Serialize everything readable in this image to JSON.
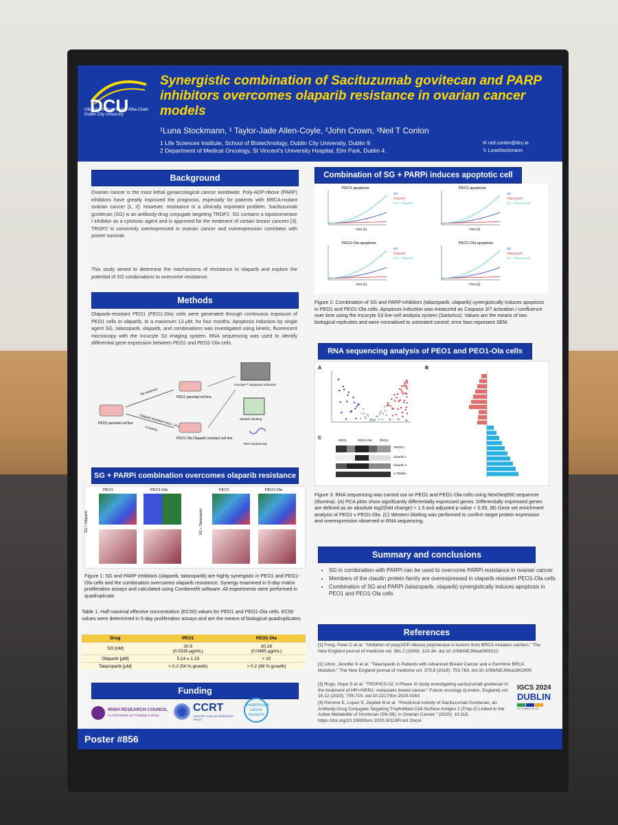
{
  "poster": {
    "title": "Synergistic combination of Sacituzumab govitecan and PARP inhibitors overcomes olaparib resistance in ovarian cancer models",
    "authors": "¹Luna Stockmann, ¹ Taylor-Jade Allen-Coyle, ²John Crown, ¹Neil T Conlon",
    "affiliation_1": "1 Life Sciences Institute, School of Biotechnology, Dublin City University, Dublin 9.",
    "affiliation_2": "2 Department of Medical Oncology, St Vincent's University Hospital, Elm Park, Dublin 4.",
    "contact_email": "neil.conlon@dcu.ie",
    "contact_handle": "LunaStockmann",
    "logo_text": "DCU",
    "logo_subtext": "Ollscoil Chathair Bhaile Átha Cliath Dublin City University",
    "poster_number": "Poster #856"
  },
  "sections": {
    "background": {
      "heading": "Background",
      "text_1": "Ovarian cancer is the most lethal gynaecological cancer worldwide. Poly-ADP-ribose (PARP) inhibitors have greatly improved the prognosis, especially for patients with BRCA-mutant ovarian cancer [1, 2]. However, resistance is a clinically important problem. Sacituzumab govitecan (SG) is an antibody-drug conjugate targeting TROP2. SG contains a topoisomerase I inhibitor as a cytotoxic agent and is approved for the treatment of certain breast cancers [3]. TROP2 is commonly overexpressed in ovarian cancer and overexpression correlates with poorer survival.",
      "text_2": "This study aimed to determine the mechanisms of resistance to olaparib and explore the potential of SG combinations to overcome resistance."
    },
    "methods": {
      "heading": "Methods",
      "text": "Olaparib-resistant PEO1 (PEO1-Ola) cells were generated through continuous exposure of PEO1 cells to olaparib, to a maximum 13 μM, for four months. Apoptosis induction by single agent SG, talazoparib, olaparib, and combinations was investigated using kinetic, fluorescent microscopy with the Incucyte S3 imaging system. RNA sequencing was used to identify differential gene expression between PEO1 and PEO1-Ola cells."
    },
    "combination": {
      "heading": "SG + PARPi combination overcomes olaparib resistance",
      "caption": "Figure 1: SG and PARP inhibitors (olaparib, talazoparib) are highly synergistic in PEO1 and PEO1-Ola cells and the combination overcomes olaparib resistance. Synergy examined in 5-day matrix proliferation assays and calculated using Combenefit software. All experiments were performed in quadruplicate.",
      "table_caption": "Table 1: Half maximal effective concentration (EC50) values for PEO1 and PEO1-Ola cells. EC50 values were determined in 5-day proliferation assays and are the means of biological quadruplicates."
    },
    "funding": {
      "heading": "Funding"
    },
    "apoptosis": {
      "heading": "Combination of SG + PARPi induces apoptotic cell death",
      "caption": "Figure 2: Combination of SG and PARP inhibitors (talazoparib, olaparib) synergistically induces apoptosis in PEO1 and PEO1-Ola cells. Apoptosis induction was measured as Caspase 3/7 activation / confluence over time using the Incucyte S3 live-cell analysis system (Sartorius). Values are the means of two biological replicates and were normalised to untreated control; error bars represent SEM."
    },
    "rnaseq": {
      "heading": "RNA sequencing analysis of PEO1 and PEO1-Ola cells",
      "caption": "Figure 3: RNA sequencing was carried out on PEO1 and PEO1-Ola cells using NextSeq550 sequencer (Illumina). (A) PCA plots show significantly differentially expressed genes. Differentially expressed genes are defined as an absolute log2(fold change) > 1.5 and adjusted p-value < 0.05. (B) Gene set enrichment analysis of PEO1 v PEO1-Ola. (C) Western blotting was performed to confirm target protein expression and overexpression observed in RNA sequencing."
    },
    "summary": {
      "heading": "Summary and conclusions",
      "items": [
        "SG in combination with PARPi can be used to overcome PARPi resistance in ovarian cancer",
        "Members of the claudin protein family are overexpressed in olaparib resistant PEO1-Ola cells",
        "Combination of SG and PARPi (talazoparib, olaparib) synergistically induces apoptosis in PEO1 and PEO1-Ola cells"
      ]
    },
    "references": {
      "heading": "References",
      "items": [
        "[1] Fong, Peter C et al. \"Inhibition of poly(ADP-ribose) polymerase in tumors from BRCA mutation carriers.\" The New England journal of medicine vol. 361,2 (2009): 123-34. doi:10.1056/NEJMoa0900212",
        "[2] Litton, Jennifer K et al. \"Talazoparib in Patients with Advanced Breast Cancer and a Germline BRCA Mutation.\" The New England journal of medicine vol. 379,8 (2018): 753-763. doi:10.1056/NEJMoa1802905",
        "[3] Rugo, Hope S et al. \"TROPICS-02: A Phase III study investigating sacituzumab govitecan in the treatment of HR+/HER2- metastatic breast cancer.\" Future oncology (London, England) vol. 16,12 (2020): 705-715. doi:10.2217/fon-2020-0163",
        "[4] Perrone E, Lopez S, Zeybek B et al. \"Preclinical Activity of Sacituzumab Govitecan, an Antibody-Drug Conjugate Targeting Trophoblast Cell-Surface Antigen 2 (Trop-2) Linked to the Active Metabolite of Irinotecan (SN-38), in Ovarian Cancer.\" (2020): 10:118. https://doi.org/10.3389/fonc.2020.00118Front Oncol"
      ]
    }
  },
  "ec50_table": {
    "headers": [
      "Drug",
      "PEO1",
      "PEO1-Ola"
    ],
    "rows": [
      [
        "SG [nM]",
        "20.9\n(0.0335 µg/mL)",
        "30.28\n(0.0485 µg/mL)"
      ],
      [
        "Olaparib [µM]",
        "5.14 ± 1.19",
        "> 10"
      ],
      [
        "Talazoparib [µM]",
        "> 0.2 (54 % growth)",
        "> 0.2 (88 % growth)"
      ]
    ]
  },
  "diagram": {
    "parental": "PEO1 parental cell line",
    "no_treatment": "No treatment",
    "olaparib_treatment": "Olaparib treatment (max. 13 µM)",
    "duration": "4 months",
    "peo1_parental": "PEO1 parental cell line",
    "ola_resistant": "PEO1-Ola Olaparib resistant cell line",
    "incucyte": "Incucyte™ apoptosis induction",
    "western": "Western blotting",
    "rna": "RNA sequencing"
  },
  "funding_logos": {
    "irc": "IRISH RESEARCH COUNCIL",
    "irc_sub": "An Chomhairle um Thaighde in Éirinn",
    "ccrt": "CCRT",
    "ccrt_sub": "CANCER CLINICAL RESEARCH TRUST",
    "breakthrough": "breakthrough cancer research"
  },
  "conference": {
    "name": "IGCS 2024",
    "city": "DUBLIN",
    "dates": "OCTOBER 16-18"
  },
  "figure_labels": {
    "peo1_apoptosis": "PEO1 apoptosis",
    "peo1ola_apoptosis": "PEO1-Ola apoptosis",
    "sg": "SG",
    "olaparib": "Olaparib",
    "talazoparib": "Talazoparib",
    "sg_olaparib": "SG + Olaparib",
    "sg_talazoparib": "SG + Talazoparib",
    "time": "Time [h]",
    "panel_a": "A",
    "panel_b": "B",
    "panel_c": "C",
    "sg_olaparib_vertical": "SG + Olaparib",
    "sg_talazoparib_vertical": "SG + Talazoparib",
    "peo1": "PEO1",
    "peo1ola": "PEO1-Ola",
    "peo4": "PEO4",
    "con": "Con",
    "ola": "Ola",
    "trop2": "TROP2",
    "claudin1": "Claudin 1",
    "claudin4": "Claudin 4",
    "tubulin": "α-Tubulin"
  },
  "colors": {
    "header_blue": "#1639a6",
    "title_yellow": "#ffd800",
    "table_gold": "#f5c842",
    "sg_line": "#2a3fbf",
    "parp_line": "#d43a3a",
    "combo_line": "#4fd0c0"
  }
}
